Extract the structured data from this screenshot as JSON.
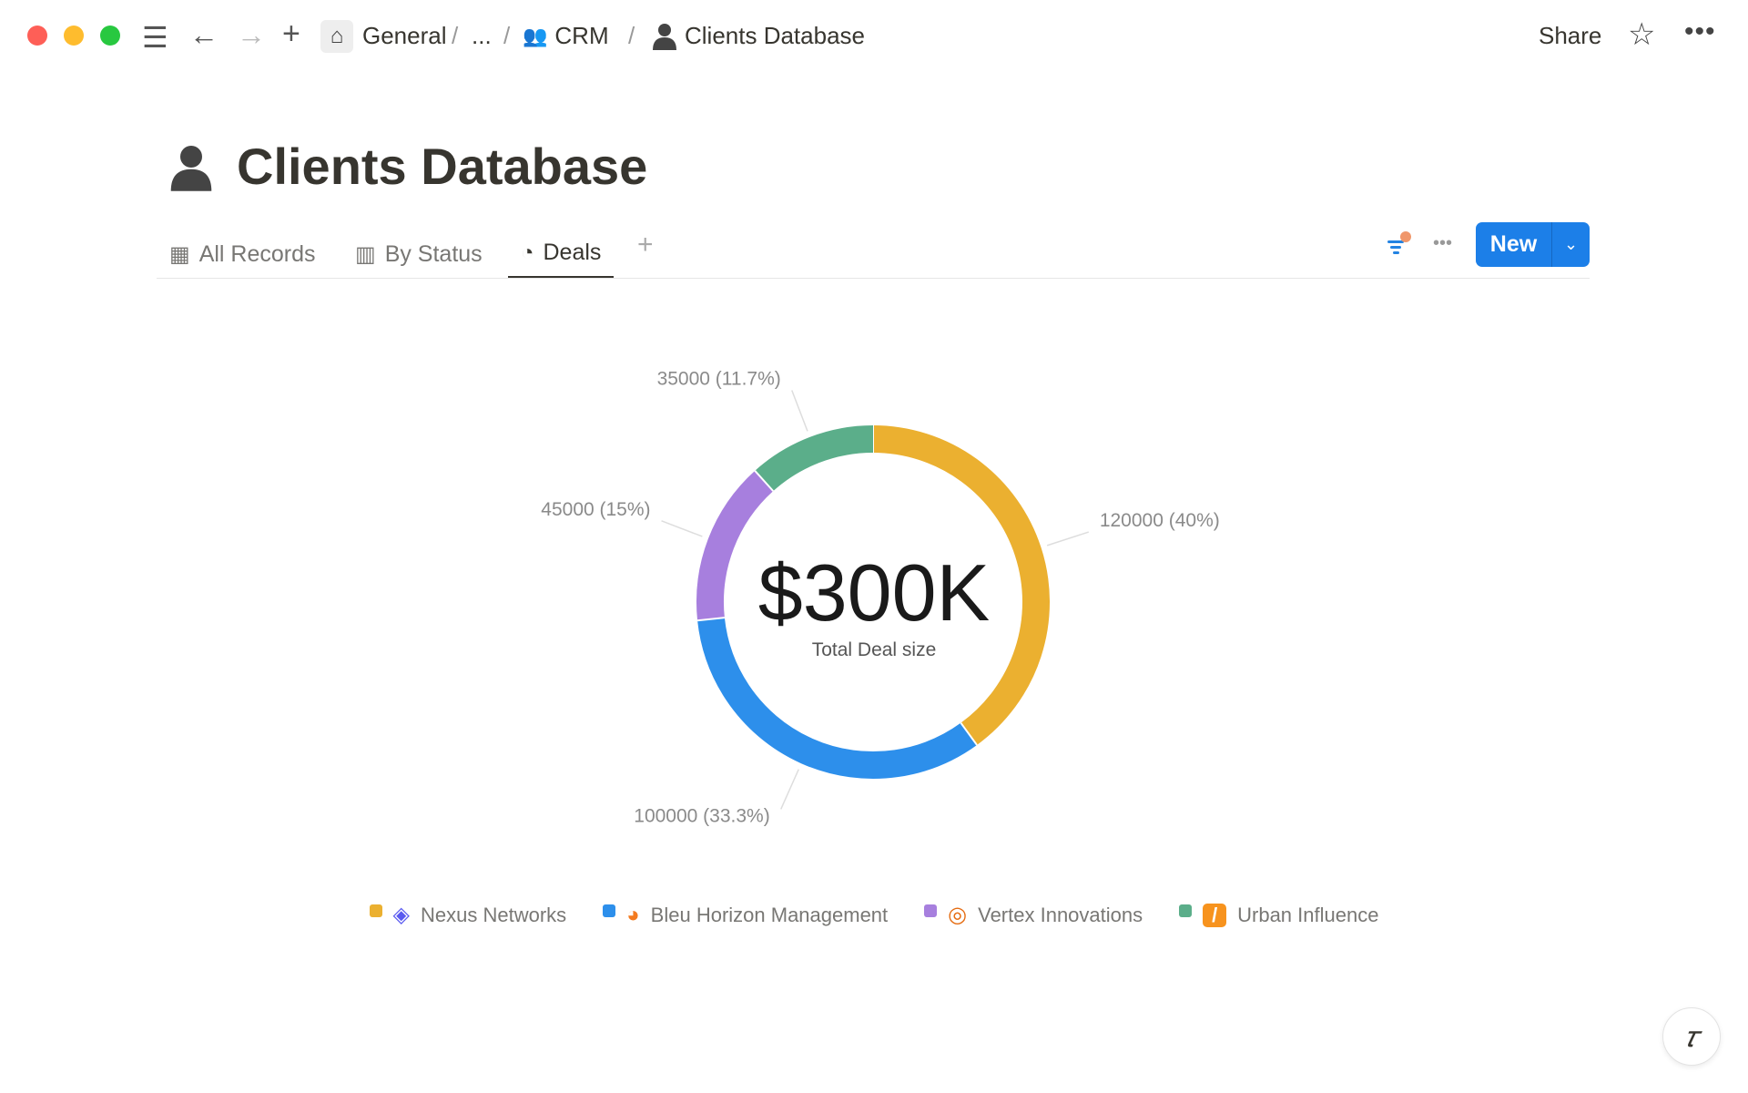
{
  "topbar": {
    "breadcrumbs": [
      "General",
      "...",
      "CRM",
      "Clients Database"
    ],
    "share": "Share"
  },
  "page": {
    "title": "Clients Database"
  },
  "tabs": [
    {
      "label": "All Records"
    },
    {
      "label": "By Status"
    },
    {
      "label": "Deals",
      "active": true
    }
  ],
  "toolbar": {
    "new_label": "New"
  },
  "chart_data": {
    "type": "pie",
    "style": "donut",
    "center_value": "$300K",
    "center_label": "Total Deal size",
    "categories": [
      "Nexus Networks",
      "Bleu Horizon Management",
      "Vertex Innovations",
      "Urban Influence"
    ],
    "values": [
      120000,
      100000,
      45000,
      35000
    ],
    "data_labels": [
      "120000 (40%)",
      "100000 (33.3%)",
      "45000 (15%)",
      "35000 (11.7%)"
    ],
    "colors": [
      "#EBB030",
      "#2D8FEB",
      "#A77FDE",
      "#5BAE8A"
    ],
    "legend": "bottom"
  }
}
